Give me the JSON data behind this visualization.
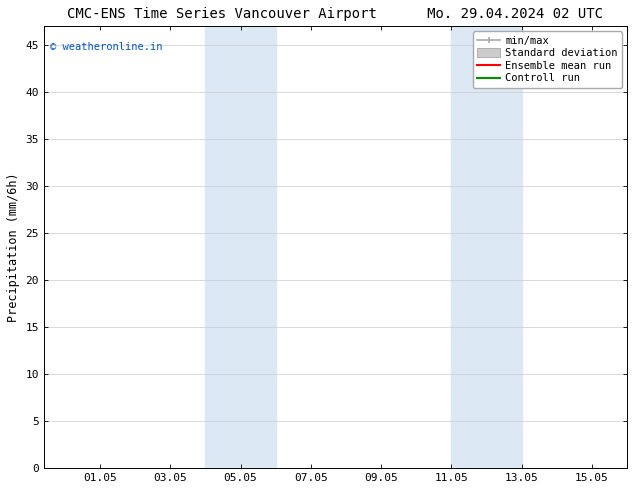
{
  "title": "CMC-ENS Time Series Vancouver Airport      Mo. 29.04.2024 02 UTC",
  "ylabel": "Precipitation (mm/6h)",
  "xlim": [
    -0.55,
    16.05
  ],
  "ylim": [
    0,
    47
  ],
  "yticks": [
    0,
    5,
    10,
    15,
    20,
    25,
    30,
    35,
    40,
    45
  ],
  "xtick_labels": [
    "01.05",
    "03.05",
    "05.05",
    "07.05",
    "09.05",
    "11.05",
    "13.05",
    "15.05"
  ],
  "xtick_positions": [
    1.05,
    3.05,
    5.05,
    7.05,
    9.05,
    11.05,
    13.05,
    15.05
  ],
  "shaded_regions": [
    {
      "xmin": 4.05,
      "xmax": 6.05,
      "color": "#dce9f5"
    },
    {
      "xmin": 11.05,
      "xmax": 13.05,
      "color": "#dce9f5"
    }
  ],
  "watermark_text": "© weatheronline.in",
  "watermark_color": "#0055cc",
  "background_color": "#ffffff",
  "grid_color": "#cccccc",
  "title_fontsize": 10,
  "tick_fontsize": 8,
  "label_fontsize": 8.5,
  "legend_fontsize": 7.5,
  "minmax_color": "#aaaaaa",
  "std_color": "#cccccc",
  "ensemble_color": "#ff0000",
  "control_color": "#009000"
}
